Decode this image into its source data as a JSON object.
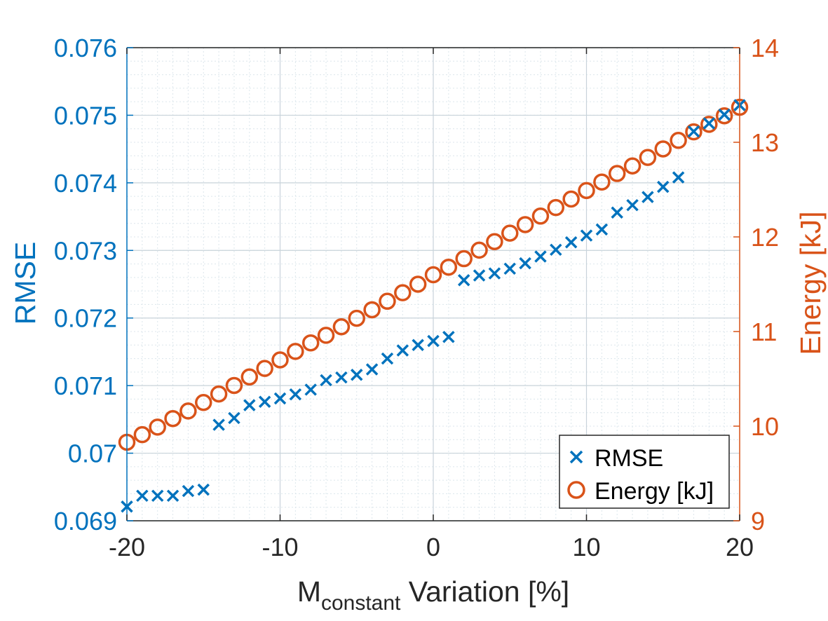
{
  "colors": {
    "left_axis": "#0072BD",
    "right_axis": "#D95319",
    "grid": "#DCE6EC",
    "frame": "#262626"
  },
  "chart_data": {
    "type": "scatter",
    "xlabel_main": "M",
    "xlabel_sub": "constant",
    "xlabel_rest": " Variation [%]",
    "ylabel_left": "RMSE",
    "ylabel_right": "Energy [kJ]",
    "xlim": [
      -20,
      20
    ],
    "ylim_left": [
      0.069,
      0.076
    ],
    "ylim_right": [
      9,
      14
    ],
    "xticks": [
      -20,
      -10,
      0,
      10,
      20
    ],
    "xtick_labels": [
      "-20",
      "-10",
      "0",
      "10",
      "20"
    ],
    "yticks_left": [
      0.069,
      0.07,
      0.071,
      0.072,
      0.073,
      0.074,
      0.075,
      0.076
    ],
    "ytick_labels_left": [
      "0.069",
      "0.07",
      "0.071",
      "0.072",
      "0.073",
      "0.074",
      "0.075",
      "0.076"
    ],
    "yticks_right": [
      9,
      10,
      11,
      12,
      13,
      14
    ],
    "ytick_labels_right": [
      "9",
      "10",
      "11",
      "12",
      "13",
      "14"
    ],
    "grid": true,
    "minor_grid": true,
    "legend_position": "bottom-right",
    "legend": [
      "RMSE",
      "Energy [kJ]"
    ],
    "series": [
      {
        "name": "RMSE",
        "axis": "left",
        "marker": "x",
        "color": "#0072BD",
        "x": [
          -20,
          -19,
          -18,
          -17,
          -16,
          -15,
          -14,
          -13,
          -12,
          -11,
          -10,
          -9,
          -8,
          -7,
          -6,
          -5,
          -4,
          -3,
          -2,
          -1,
          0,
          1,
          2,
          3,
          4,
          5,
          6,
          7,
          8,
          9,
          10,
          11,
          12,
          13,
          14,
          15,
          16,
          17,
          18,
          19,
          20
        ],
        "y": [
          0.06921,
          0.06937,
          0.06937,
          0.06937,
          0.06944,
          0.06946,
          0.07042,
          0.07052,
          0.07071,
          0.07076,
          0.07081,
          0.07087,
          0.07094,
          0.07108,
          0.07112,
          0.07116,
          0.07124,
          0.0714,
          0.07152,
          0.0716,
          0.07166,
          0.07172,
          0.07256,
          0.07263,
          0.07266,
          0.07273,
          0.07281,
          0.07291,
          0.07301,
          0.07312,
          0.07322,
          0.07331,
          0.07356,
          0.07367,
          0.07379,
          0.07394,
          0.07408,
          0.07476,
          0.07488,
          0.07501,
          0.07515
        ]
      },
      {
        "name": "Energy [kJ]",
        "axis": "right",
        "marker": "o",
        "color": "#D95319",
        "x": [
          -20,
          -19,
          -18,
          -17,
          -16,
          -15,
          -14,
          -13,
          -12,
          -11,
          -10,
          -9,
          -8,
          -7,
          -6,
          -5,
          -4,
          -3,
          -2,
          -1,
          0,
          1,
          2,
          3,
          4,
          5,
          6,
          7,
          8,
          9,
          10,
          11,
          12,
          13,
          14,
          15,
          16,
          17,
          18,
          19,
          20
        ],
        "y": [
          9.83,
          9.91,
          9.99,
          10.08,
          10.16,
          10.25,
          10.34,
          10.43,
          10.52,
          10.61,
          10.7,
          10.79,
          10.88,
          10.96,
          11.05,
          11.14,
          11.23,
          11.32,
          11.41,
          11.5,
          11.6,
          11.68,
          11.77,
          11.86,
          11.95,
          12.04,
          12.13,
          12.22,
          12.31,
          12.4,
          12.49,
          12.58,
          12.67,
          12.75,
          12.84,
          12.93,
          13.02,
          13.11,
          13.19,
          13.28,
          13.37
        ]
      }
    ]
  }
}
